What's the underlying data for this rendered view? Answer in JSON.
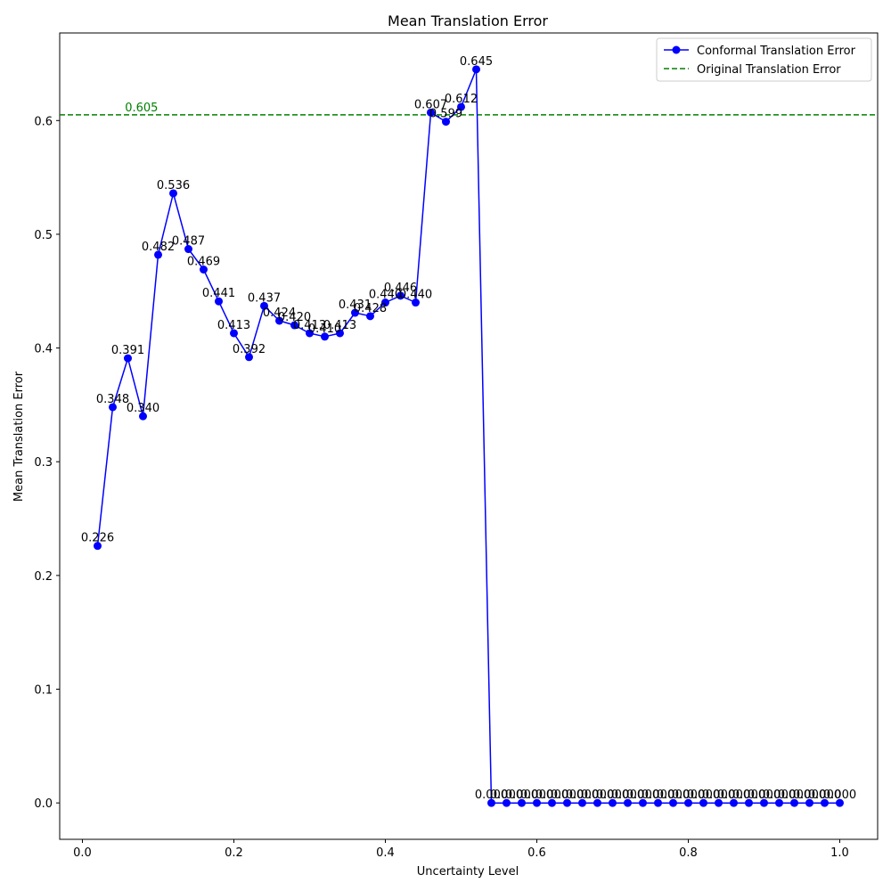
{
  "chart_data": {
    "type": "line",
    "title": "Mean Translation Error",
    "xlabel": "Uncertainty Level",
    "ylabel": "Mean Translation Error",
    "xlim": [
      -0.03,
      1.05
    ],
    "ylim": [
      -0.032,
      0.677
    ],
    "xticks": [
      0.0,
      0.2,
      0.4,
      0.6,
      0.8,
      1.0
    ],
    "xtick_labels": [
      "0.0",
      "0.2",
      "0.4",
      "0.6",
      "0.8",
      "1.0"
    ],
    "yticks": [
      0.0,
      0.1,
      0.2,
      0.3,
      0.4,
      0.5,
      0.6
    ],
    "ytick_labels": [
      "0.0",
      "0.1",
      "0.2",
      "0.3",
      "0.4",
      "0.5",
      "0.6"
    ],
    "grid": false,
    "legend_position": "top-right",
    "series": [
      {
        "name": "Conformal Translation Error",
        "color": "#0000ff",
        "style": "line-with-circle-markers",
        "x": [
          0.02,
          0.04,
          0.06,
          0.08,
          0.1,
          0.12,
          0.14,
          0.16,
          0.18,
          0.2,
          0.22,
          0.24,
          0.26,
          0.28,
          0.3,
          0.32,
          0.34,
          0.36,
          0.38,
          0.4,
          0.42,
          0.44,
          0.46,
          0.48,
          0.5,
          0.52,
          0.54,
          0.56,
          0.58,
          0.6,
          0.62,
          0.64,
          0.66,
          0.68,
          0.7,
          0.72,
          0.74,
          0.76,
          0.78,
          0.8,
          0.82,
          0.84,
          0.86,
          0.88,
          0.9,
          0.92,
          0.94,
          0.96,
          0.98,
          1.0
        ],
        "y": [
          0.226,
          0.348,
          0.391,
          0.34,
          0.482,
          0.536,
          0.487,
          0.469,
          0.441,
          0.413,
          0.392,
          0.437,
          0.424,
          0.42,
          0.413,
          0.41,
          0.413,
          0.431,
          0.428,
          0.44,
          0.446,
          0.44,
          0.607,
          0.599,
          0.612,
          0.645,
          0.0,
          0.0,
          0.0,
          0.0,
          0.0,
          0.0,
          0.0,
          0.0,
          0.0,
          0.0,
          0.0,
          0.0,
          0.0,
          0.0,
          0.0,
          0.0,
          0.0,
          0.0,
          0.0,
          0.0,
          0.0,
          0.0,
          0.0,
          0.0
        ],
        "labels": [
          "0.226",
          "0.348",
          "0.391",
          "0.340",
          "0.482",
          "0.536",
          "0.487",
          "0.469",
          "0.441",
          "0.413",
          "0.392",
          "0.437",
          "0.424",
          "0.420",
          "0.413",
          "0.410",
          "0.413",
          "0.431",
          "0.428",
          "0.440",
          "0.446",
          "0.440",
          "0.607",
          "0.599",
          "0.612",
          "0.645",
          "0.000",
          "0.000",
          "0.000",
          "0.000",
          "0.000",
          "0.000",
          "0.000",
          "0.000",
          "0.000",
          "0.000",
          "0.000",
          "0.000",
          "0.000",
          "0.000",
          "0.000",
          "0.000",
          "0.000",
          "0.000",
          "0.000",
          "0.000",
          "0.000",
          "0.000",
          "0.000",
          "0.000"
        ]
      }
    ],
    "reference_lines": [
      {
        "name": "Original Translation Error",
        "orientation": "horizontal",
        "y": 0.605,
        "color": "#008000",
        "style": "dashed",
        "label": "0.605",
        "label_x": 0.078
      }
    ]
  }
}
